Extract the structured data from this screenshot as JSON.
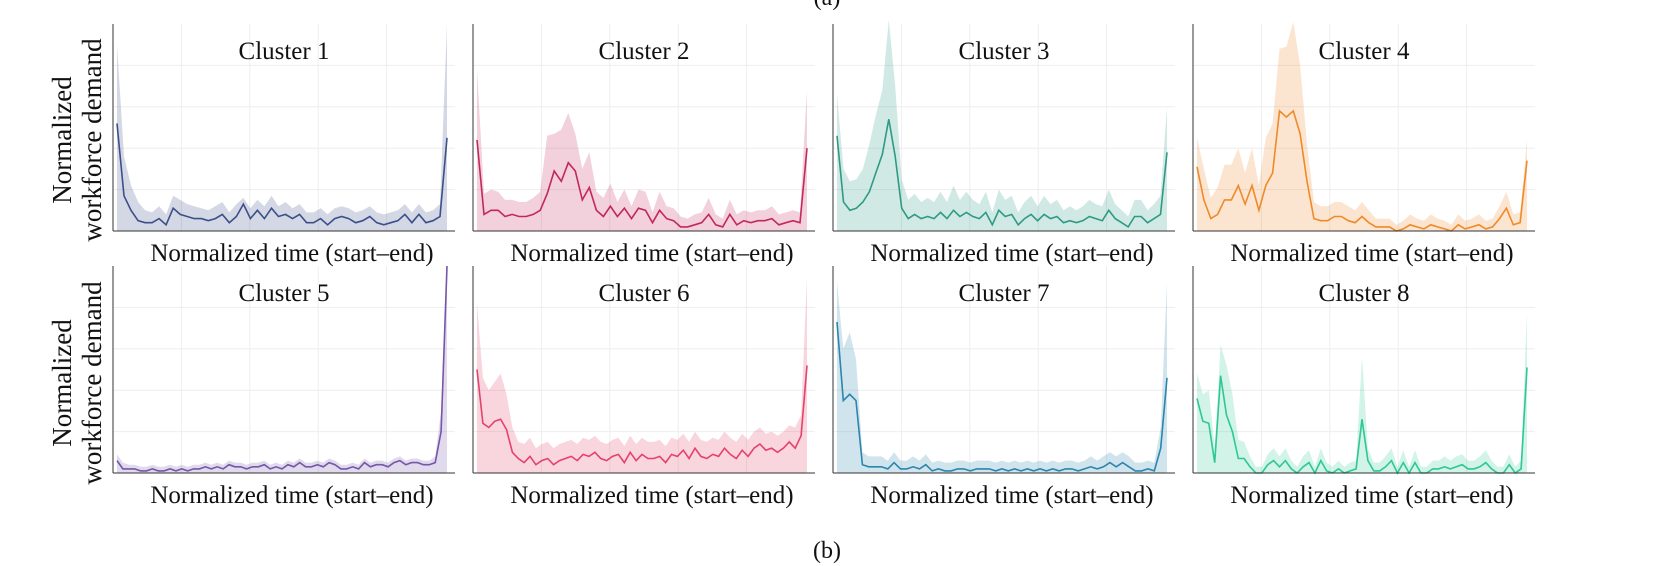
{
  "captions": {
    "top": "(a)",
    "bottom": "(b)"
  },
  "ylabel_lines": [
    "Normalized",
    "workforce demand"
  ],
  "xlabel": "Normalized time (start–end)",
  "chart_data": [
    {
      "type": "line",
      "title": "Cluster 1",
      "color": "#3b4f8a",
      "y": [
        0.52,
        0.17,
        0.1,
        0.05,
        0.04,
        0.04,
        0.06,
        0.03,
        0.11,
        0.08,
        0.07,
        0.06,
        0.06,
        0.05,
        0.06,
        0.08,
        0.04,
        0.07,
        0.13,
        0.06,
        0.1,
        0.06,
        0.11,
        0.07,
        0.08,
        0.06,
        0.08,
        0.04,
        0.04,
        0.06,
        0.03,
        0.06,
        0.07,
        0.06,
        0.04,
        0.05,
        0.07,
        0.04,
        0.03,
        0.04,
        0.05,
        0.08,
        0.04,
        0.08,
        0.04,
        0.05,
        0.07,
        0.45
      ],
      "band": [
        0.9,
        0.36,
        0.22,
        0.14,
        0.1,
        0.09,
        0.12,
        0.08,
        0.17,
        0.15,
        0.13,
        0.12,
        0.11,
        0.1,
        0.12,
        0.14,
        0.09,
        0.13,
        0.16,
        0.11,
        0.15,
        0.12,
        0.17,
        0.12,
        0.14,
        0.11,
        0.13,
        0.09,
        0.09,
        0.11,
        0.08,
        0.11,
        0.12,
        0.11,
        0.09,
        0.1,
        0.12,
        0.09,
        0.08,
        0.09,
        0.1,
        0.13,
        0.09,
        0.13,
        0.09,
        0.1,
        0.13,
        1.0
      ],
      "ylim": [
        0,
        1
      ]
    },
    {
      "type": "line",
      "title": "Cluster 2",
      "color": "#c2285f",
      "y": [
        0.44,
        0.08,
        0.1,
        0.1,
        0.07,
        0.08,
        0.07,
        0.07,
        0.08,
        0.1,
        0.18,
        0.29,
        0.24,
        0.33,
        0.29,
        0.15,
        0.21,
        0.1,
        0.07,
        0.12,
        0.07,
        0.11,
        0.06,
        0.11,
        0.1,
        0.04,
        0.1,
        0.06,
        0.05,
        0.02,
        0.02,
        0.03,
        0.04,
        0.08,
        0.03,
        0.02,
        0.08,
        0.03,
        0.05,
        0.04,
        0.05,
        0.05,
        0.06,
        0.03,
        0.04,
        0.05,
        0.04,
        0.4
      ],
      "band": [
        0.78,
        0.18,
        0.2,
        0.19,
        0.15,
        0.15,
        0.14,
        0.14,
        0.16,
        0.19,
        0.46,
        0.47,
        0.49,
        0.57,
        0.47,
        0.3,
        0.38,
        0.19,
        0.16,
        0.23,
        0.14,
        0.2,
        0.12,
        0.2,
        0.19,
        0.09,
        0.19,
        0.12,
        0.11,
        0.07,
        0.06,
        0.08,
        0.09,
        0.16,
        0.08,
        0.06,
        0.15,
        0.08,
        0.1,
        0.09,
        0.1,
        0.1,
        0.12,
        0.08,
        0.09,
        0.1,
        0.09,
        0.68
      ],
      "ylim": [
        0,
        1
      ]
    },
    {
      "type": "line",
      "title": "Cluster 3",
      "color": "#2e9a85",
      "y": [
        0.46,
        0.14,
        0.1,
        0.11,
        0.14,
        0.19,
        0.28,
        0.37,
        0.54,
        0.36,
        0.11,
        0.06,
        0.08,
        0.06,
        0.07,
        0.06,
        0.09,
        0.06,
        0.1,
        0.07,
        0.09,
        0.07,
        0.06,
        0.09,
        0.03,
        0.1,
        0.07,
        0.08,
        0.03,
        0.06,
        0.08,
        0.05,
        0.08,
        0.06,
        0.07,
        0.04,
        0.05,
        0.04,
        0.05,
        0.07,
        0.06,
        0.05,
        0.1,
        0.06,
        0.04,
        0.02,
        0.07,
        0.07,
        0.04,
        0.06,
        0.08,
        0.38
      ],
      "band": [
        0.66,
        0.3,
        0.24,
        0.25,
        0.3,
        0.42,
        0.56,
        0.68,
        1.02,
        0.7,
        0.25,
        0.15,
        0.18,
        0.14,
        0.16,
        0.14,
        0.19,
        0.14,
        0.22,
        0.15,
        0.19,
        0.15,
        0.13,
        0.19,
        0.09,
        0.2,
        0.15,
        0.17,
        0.09,
        0.14,
        0.17,
        0.12,
        0.17,
        0.13,
        0.15,
        0.1,
        0.12,
        0.1,
        0.12,
        0.15,
        0.13,
        0.12,
        0.2,
        0.13,
        0.1,
        0.07,
        0.15,
        0.15,
        0.1,
        0.13,
        0.17,
        0.6
      ],
      "ylim": [
        0,
        1
      ]
    },
    {
      "type": "line",
      "title": "Cluster 4",
      "color": "#ef8a2a",
      "y": [
        0.31,
        0.15,
        0.06,
        0.08,
        0.15,
        0.15,
        0.22,
        0.13,
        0.22,
        0.1,
        0.22,
        0.28,
        0.58,
        0.55,
        0.58,
        0.47,
        0.24,
        0.06,
        0.05,
        0.05,
        0.07,
        0.07,
        0.05,
        0.04,
        0.07,
        0.04,
        0.02,
        0.02,
        0.02,
        0.0,
        0.01,
        0.03,
        0.02,
        0.01,
        0.03,
        0.02,
        0.01,
        0.0,
        0.03,
        0.01,
        0.02,
        0.03,
        0.01,
        0.02,
        0.06,
        0.11,
        0.03,
        0.04,
        0.34
      ],
      "band": [
        0.45,
        0.3,
        0.16,
        0.21,
        0.32,
        0.32,
        0.4,
        0.28,
        0.4,
        0.22,
        0.45,
        0.52,
        0.88,
        0.89,
        1.01,
        0.8,
        0.42,
        0.14,
        0.12,
        0.12,
        0.14,
        0.14,
        0.12,
        0.1,
        0.14,
        0.1,
        0.06,
        0.06,
        0.06,
        0.03,
        0.05,
        0.08,
        0.06,
        0.05,
        0.08,
        0.06,
        0.05,
        0.03,
        0.08,
        0.05,
        0.06,
        0.08,
        0.05,
        0.06,
        0.12,
        0.19,
        0.08,
        0.09,
        0.44
      ],
      "ylim": [
        0,
        1
      ]
    },
    {
      "type": "line",
      "title": "Cluster 5",
      "color": "#7556a8",
      "y": [
        0.06,
        0.02,
        0.02,
        0.02,
        0.01,
        0.01,
        0.02,
        0.01,
        0.01,
        0.02,
        0.01,
        0.02,
        0.01,
        0.02,
        0.02,
        0.03,
        0.02,
        0.03,
        0.02,
        0.04,
        0.03,
        0.03,
        0.02,
        0.03,
        0.03,
        0.04,
        0.02,
        0.03,
        0.02,
        0.04,
        0.03,
        0.05,
        0.03,
        0.03,
        0.04,
        0.03,
        0.05,
        0.04,
        0.02,
        0.02,
        0.03,
        0.02,
        0.05,
        0.03,
        0.04,
        0.04,
        0.03,
        0.05,
        0.06,
        0.04,
        0.05,
        0.05,
        0.04,
        0.04,
        0.05,
        0.2,
        1.0
      ],
      "band": [
        0.09,
        0.05,
        0.04,
        0.04,
        0.03,
        0.03,
        0.04,
        0.03,
        0.03,
        0.04,
        0.03,
        0.04,
        0.03,
        0.04,
        0.04,
        0.05,
        0.04,
        0.05,
        0.04,
        0.06,
        0.05,
        0.05,
        0.04,
        0.05,
        0.05,
        0.06,
        0.04,
        0.05,
        0.04,
        0.06,
        0.05,
        0.07,
        0.05,
        0.05,
        0.06,
        0.05,
        0.07,
        0.06,
        0.04,
        0.04,
        0.05,
        0.04,
        0.07,
        0.05,
        0.06,
        0.06,
        0.05,
        0.07,
        0.08,
        0.06,
        0.07,
        0.07,
        0.06,
        0.06,
        0.08,
        0.3,
        1.0
      ],
      "ylim": [
        0,
        1
      ]
    },
    {
      "type": "line",
      "title": "Cluster 6",
      "color": "#e4426b",
      "y": [
        0.5,
        0.24,
        0.22,
        0.25,
        0.26,
        0.21,
        0.1,
        0.07,
        0.05,
        0.08,
        0.04,
        0.06,
        0.07,
        0.04,
        0.06,
        0.07,
        0.08,
        0.06,
        0.09,
        0.08,
        0.1,
        0.07,
        0.06,
        0.08,
        0.09,
        0.05,
        0.1,
        0.06,
        0.09,
        0.07,
        0.07,
        0.08,
        0.05,
        0.09,
        0.08,
        0.11,
        0.07,
        0.12,
        0.08,
        0.07,
        0.09,
        0.08,
        0.12,
        0.09,
        0.07,
        0.11,
        0.08,
        0.12,
        0.14,
        0.11,
        0.12,
        0.1,
        0.12,
        0.15,
        0.12,
        0.18,
        0.52
      ],
      "band": [
        0.82,
        0.46,
        0.4,
        0.44,
        0.48,
        0.38,
        0.22,
        0.15,
        0.14,
        0.17,
        0.12,
        0.14,
        0.15,
        0.12,
        0.14,
        0.15,
        0.16,
        0.14,
        0.17,
        0.16,
        0.18,
        0.15,
        0.14,
        0.16,
        0.17,
        0.13,
        0.18,
        0.14,
        0.17,
        0.15,
        0.15,
        0.16,
        0.13,
        0.17,
        0.16,
        0.19,
        0.15,
        0.2,
        0.16,
        0.15,
        0.17,
        0.16,
        0.2,
        0.17,
        0.15,
        0.19,
        0.16,
        0.2,
        0.22,
        0.19,
        0.2,
        0.18,
        0.2,
        0.23,
        0.22,
        0.28,
        0.95
      ],
      "ylim": [
        0,
        1
      ]
    },
    {
      "type": "line",
      "title": "Cluster 7",
      "color": "#2b85ad",
      "y": [
        0.73,
        0.35,
        0.38,
        0.35,
        0.04,
        0.03,
        0.03,
        0.03,
        0.02,
        0.05,
        0.02,
        0.02,
        0.03,
        0.02,
        0.04,
        0.01,
        0.02,
        0.01,
        0.01,
        0.02,
        0.02,
        0.01,
        0.02,
        0.02,
        0.02,
        0.01,
        0.02,
        0.01,
        0.02,
        0.01,
        0.02,
        0.01,
        0.02,
        0.01,
        0.02,
        0.01,
        0.02,
        0.02,
        0.01,
        0.02,
        0.03,
        0.02,
        0.03,
        0.05,
        0.03,
        0.05,
        0.03,
        0.01,
        0.01,
        0.02,
        0.01,
        0.12,
        0.46
      ],
      "band": [
        0.92,
        0.6,
        0.68,
        0.55,
        0.1,
        0.08,
        0.08,
        0.08,
        0.06,
        0.1,
        0.06,
        0.06,
        0.08,
        0.06,
        0.09,
        0.05,
        0.06,
        0.05,
        0.05,
        0.06,
        0.06,
        0.05,
        0.06,
        0.06,
        0.06,
        0.05,
        0.06,
        0.05,
        0.06,
        0.05,
        0.06,
        0.05,
        0.06,
        0.05,
        0.06,
        0.05,
        0.06,
        0.06,
        0.05,
        0.06,
        0.08,
        0.06,
        0.08,
        0.1,
        0.08,
        0.1,
        0.08,
        0.05,
        0.05,
        0.06,
        0.05,
        0.22,
        0.92
      ],
      "ylim": [
        0,
        1
      ]
    },
    {
      "type": "line",
      "title": "Cluster 8",
      "color": "#2ec795",
      "y": [
        0.36,
        0.25,
        0.24,
        0.05,
        0.47,
        0.28,
        0.2,
        0.07,
        0.07,
        0.03,
        0.0,
        0.0,
        0.04,
        0.06,
        0.03,
        0.06,
        0.02,
        0.0,
        0.03,
        0.05,
        0.0,
        0.06,
        0.01,
        0.0,
        0.02,
        0.0,
        0.01,
        0.02,
        0.26,
        0.06,
        0.01,
        0.01,
        0.03,
        0.06,
        0.0,
        0.05,
        0.0,
        0.05,
        0.0,
        0.0,
        0.02,
        0.02,
        0.03,
        0.02,
        0.03,
        0.04,
        0.02,
        0.02,
        0.03,
        0.05,
        0.02,
        0.0,
        0.0,
        0.04,
        0.0,
        0.02,
        0.51
      ],
      "band": [
        0.48,
        0.38,
        0.4,
        0.12,
        0.62,
        0.52,
        0.38,
        0.16,
        0.15,
        0.08,
        0.03,
        0.03,
        0.09,
        0.12,
        0.08,
        0.12,
        0.06,
        0.03,
        0.08,
        0.11,
        0.03,
        0.12,
        0.05,
        0.03,
        0.06,
        0.03,
        0.05,
        0.06,
        0.56,
        0.12,
        0.05,
        0.05,
        0.08,
        0.12,
        0.03,
        0.11,
        0.03,
        0.11,
        0.03,
        0.03,
        0.06,
        0.06,
        0.08,
        0.06,
        0.08,
        0.09,
        0.06,
        0.06,
        0.08,
        0.11,
        0.06,
        0.03,
        0.03,
        0.09,
        0.03,
        0.06,
        0.78
      ],
      "ylim": [
        0,
        1
      ]
    }
  ]
}
